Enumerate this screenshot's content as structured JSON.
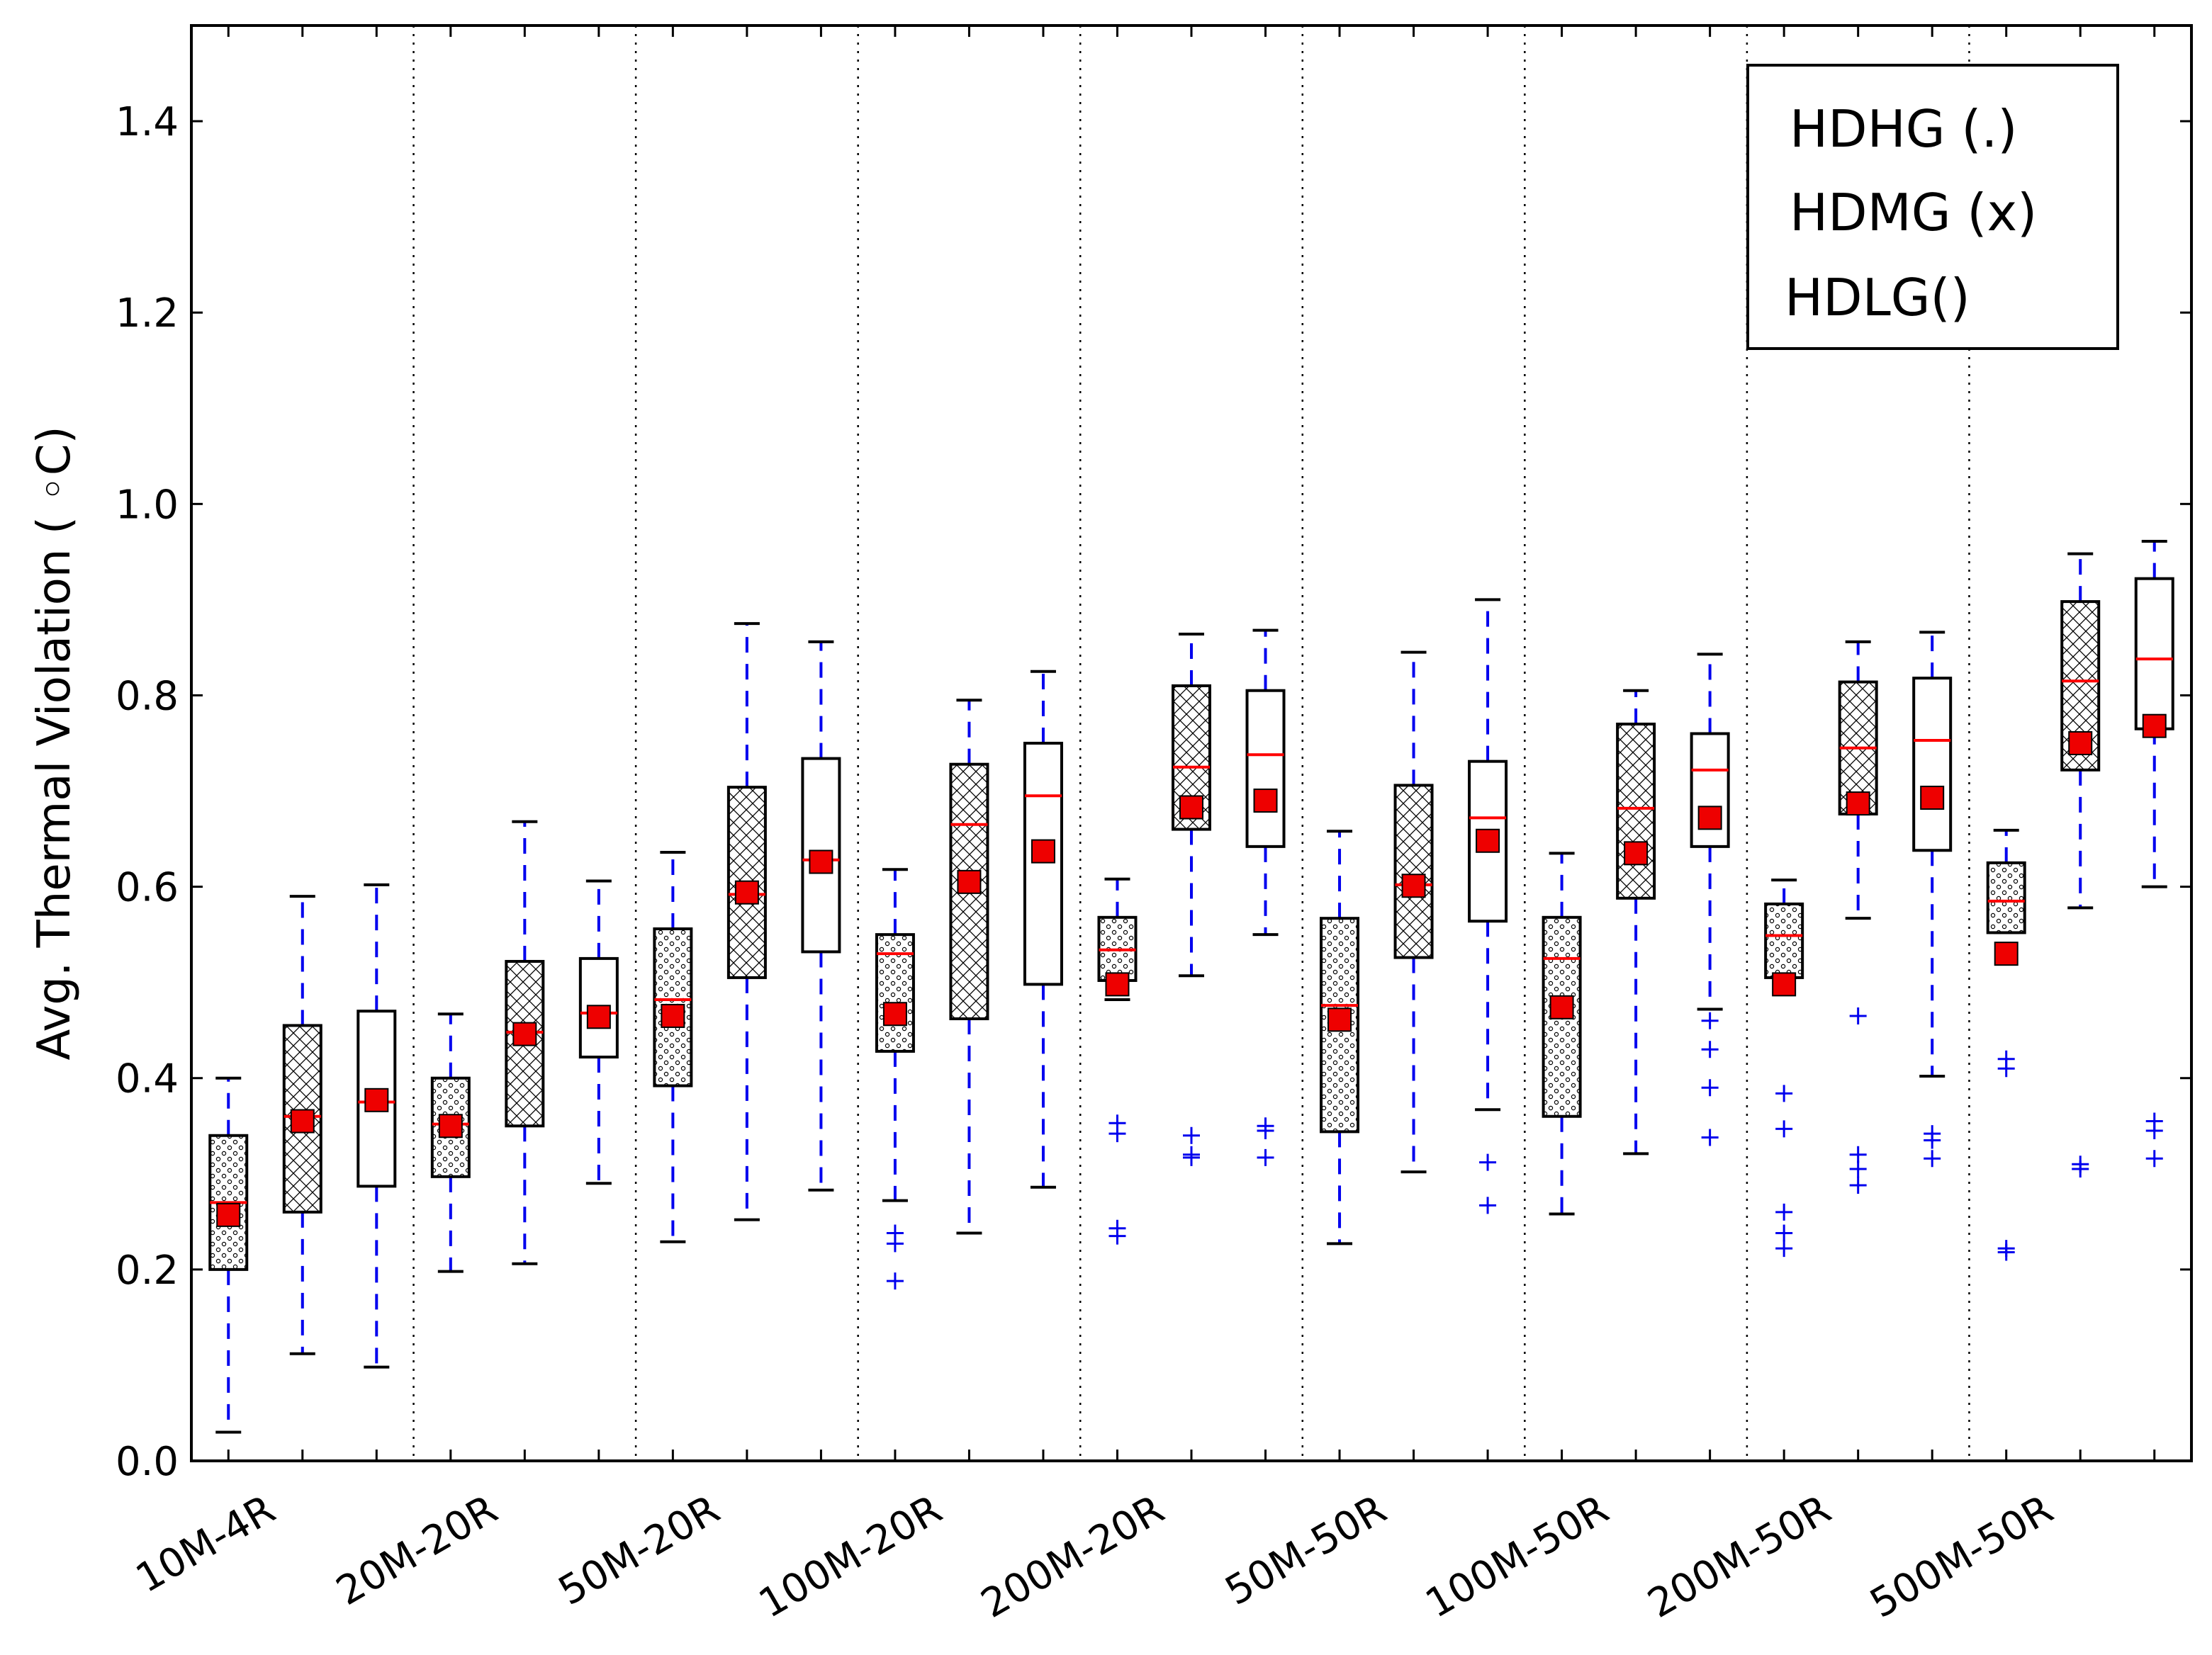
{
  "chart_data": {
    "type": "boxplot",
    "ylabel": "Avg. Thermal Violation ( ◦C)",
    "ylim": [
      0,
      1.5
    ],
    "yticks": [
      "0.0",
      "0.2",
      "0.4",
      "0.6",
      "0.8",
      "1.0",
      "1.2",
      "1.4"
    ],
    "categories": [
      "10M-4R",
      "20M-20R",
      "50M-20R",
      "100M-20R",
      "200M-20R",
      "50M-50R",
      "100M-50R",
      "200M-50R",
      "500M-50R"
    ],
    "legend": {
      "placement": "top-right",
      "entries": [
        "HDHG (.)",
        "HDMG (x)",
        "HDLG()"
      ]
    },
    "colors": {
      "median": "#ff0000",
      "mean": "#ee0000",
      "whisker": "#0000ee",
      "outlier": "#0000ee",
      "box": "#000000"
    },
    "series": [
      {
        "group": 0,
        "pattern": "dots",
        "min": 0.03,
        "q1": 0.2,
        "median": 0.27,
        "q3": 0.34,
        "max": 0.4,
        "mean": 0.257,
        "outliers": []
      },
      {
        "group": 0,
        "pattern": "cross",
        "min": 0.112,
        "q1": 0.26,
        "median": 0.36,
        "q3": 0.455,
        "max": 0.59,
        "mean": 0.355,
        "outliers": []
      },
      {
        "group": 0,
        "pattern": "none",
        "min": 0.098,
        "q1": 0.287,
        "median": 0.375,
        "q3": 0.47,
        "max": 0.602,
        "mean": 0.377,
        "outliers": []
      },
      {
        "group": 1,
        "pattern": "dots",
        "min": 0.198,
        "q1": 0.297,
        "median": 0.352,
        "q3": 0.4,
        "max": 0.467,
        "mean": 0.35,
        "outliers": []
      },
      {
        "group": 1,
        "pattern": "cross",
        "min": 0.206,
        "q1": 0.35,
        "median": 0.448,
        "q3": 0.522,
        "max": 0.668,
        "mean": 0.446,
        "outliers": []
      },
      {
        "group": 1,
        "pattern": "none",
        "min": 0.29,
        "q1": 0.422,
        "median": 0.468,
        "q3": 0.525,
        "max": 0.606,
        "mean": 0.464,
        "outliers": []
      },
      {
        "group": 2,
        "pattern": "dots",
        "min": 0.229,
        "q1": 0.392,
        "median": 0.482,
        "q3": 0.556,
        "max": 0.636,
        "mean": 0.465,
        "outliers": []
      },
      {
        "group": 2,
        "pattern": "cross",
        "min": 0.252,
        "q1": 0.505,
        "median": 0.592,
        "q3": 0.704,
        "max": 0.875,
        "mean": 0.594,
        "outliers": []
      },
      {
        "group": 2,
        "pattern": "none",
        "min": 0.283,
        "q1": 0.532,
        "median": 0.628,
        "q3": 0.734,
        "max": 0.856,
        "mean": 0.626,
        "outliers": []
      },
      {
        "group": 3,
        "pattern": "dots",
        "min": 0.272,
        "q1": 0.428,
        "median": 0.53,
        "q3": 0.55,
        "max": 0.618,
        "mean": 0.467,
        "outliers": [
          0.238,
          0.227,
          0.188
        ]
      },
      {
        "group": 3,
        "pattern": "cross",
        "min": 0.238,
        "q1": 0.462,
        "median": 0.665,
        "q3": 0.728,
        "max": 0.795,
        "mean": 0.605,
        "outliers": []
      },
      {
        "group": 3,
        "pattern": "none",
        "min": 0.286,
        "q1": 0.498,
        "median": 0.695,
        "q3": 0.75,
        "max": 0.825,
        "mean": 0.637,
        "outliers": []
      },
      {
        "group": 4,
        "pattern": "dots",
        "min": 0.482,
        "q1": 0.502,
        "median": 0.534,
        "q3": 0.568,
        "max": 0.608,
        "mean": 0.498,
        "outliers": [
          0.353,
          0.342,
          0.243,
          0.235
        ]
      },
      {
        "group": 4,
        "pattern": "cross",
        "min": 0.507,
        "q1": 0.66,
        "median": 0.725,
        "q3": 0.81,
        "max": 0.864,
        "mean": 0.683,
        "outliers": [
          0.34,
          0.32,
          0.317
        ]
      },
      {
        "group": 4,
        "pattern": "none",
        "min": 0.55,
        "q1": 0.642,
        "median": 0.738,
        "q3": 0.805,
        "max": 0.868,
        "mean": 0.69,
        "outliers": [
          0.35,
          0.345,
          0.317
        ]
      },
      {
        "group": 5,
        "pattern": "dots",
        "min": 0.227,
        "q1": 0.344,
        "median": 0.476,
        "q3": 0.567,
        "max": 0.658,
        "mean": 0.461,
        "outliers": []
      },
      {
        "group": 5,
        "pattern": "cross",
        "min": 0.302,
        "q1": 0.526,
        "median": 0.602,
        "q3": 0.706,
        "max": 0.845,
        "mean": 0.601,
        "outliers": []
      },
      {
        "group": 5,
        "pattern": "none",
        "min": 0.367,
        "q1": 0.564,
        "median": 0.672,
        "q3": 0.731,
        "max": 0.9,
        "mean": 0.648,
        "outliers": [
          0.312,
          0.267
        ]
      },
      {
        "group": 6,
        "pattern": "dots",
        "min": 0.258,
        "q1": 0.36,
        "median": 0.525,
        "q3": 0.568,
        "max": 0.635,
        "mean": 0.474,
        "outliers": []
      },
      {
        "group": 6,
        "pattern": "cross",
        "min": 0.321,
        "q1": 0.588,
        "median": 0.682,
        "q3": 0.77,
        "max": 0.805,
        "mean": 0.635,
        "outliers": []
      },
      {
        "group": 6,
        "pattern": "none",
        "min": 0.472,
        "q1": 0.642,
        "median": 0.722,
        "q3": 0.76,
        "max": 0.843,
        "mean": 0.672,
        "outliers": [
          0.46,
          0.43,
          0.39,
          0.338
        ]
      },
      {
        "group": 7,
        "pattern": "dots",
        "min": 0.505,
        "q1": 0.505,
        "median": 0.549,
        "q3": 0.582,
        "max": 0.607,
        "mean": 0.498,
        "outliers": [
          0.384,
          0.347,
          0.26,
          0.238,
          0.222
        ]
      },
      {
        "group": 7,
        "pattern": "cross",
        "min": 0.567,
        "q1": 0.676,
        "median": 0.745,
        "q3": 0.814,
        "max": 0.856,
        "mean": 0.687,
        "outliers": [
          0.465,
          0.32,
          0.305,
          0.288
        ]
      },
      {
        "group": 7,
        "pattern": "none",
        "min": 0.402,
        "q1": 0.638,
        "median": 0.753,
        "q3": 0.818,
        "max": 0.866,
        "mean": 0.693,
        "outliers": [
          0.342,
          0.335,
          0.316
        ]
      },
      {
        "group": 8,
        "pattern": "dots",
        "min": 0.552,
        "q1": 0.552,
        "median": 0.585,
        "q3": 0.625,
        "max": 0.659,
        "mean": 0.53,
        "outliers": [
          0.42,
          0.41,
          0.222,
          0.218
        ]
      },
      {
        "group": 8,
        "pattern": "cross",
        "min": 0.578,
        "q1": 0.722,
        "median": 0.815,
        "q3": 0.898,
        "max": 0.948,
        "mean": 0.75,
        "outliers": [
          0.31,
          0.305
        ]
      },
      {
        "group": 8,
        "pattern": "none",
        "min": 0.6,
        "q1": 0.765,
        "median": 0.838,
        "q3": 0.922,
        "max": 0.961,
        "mean": 0.768,
        "outliers": [
          0.355,
          0.345,
          0.316
        ]
      }
    ]
  }
}
